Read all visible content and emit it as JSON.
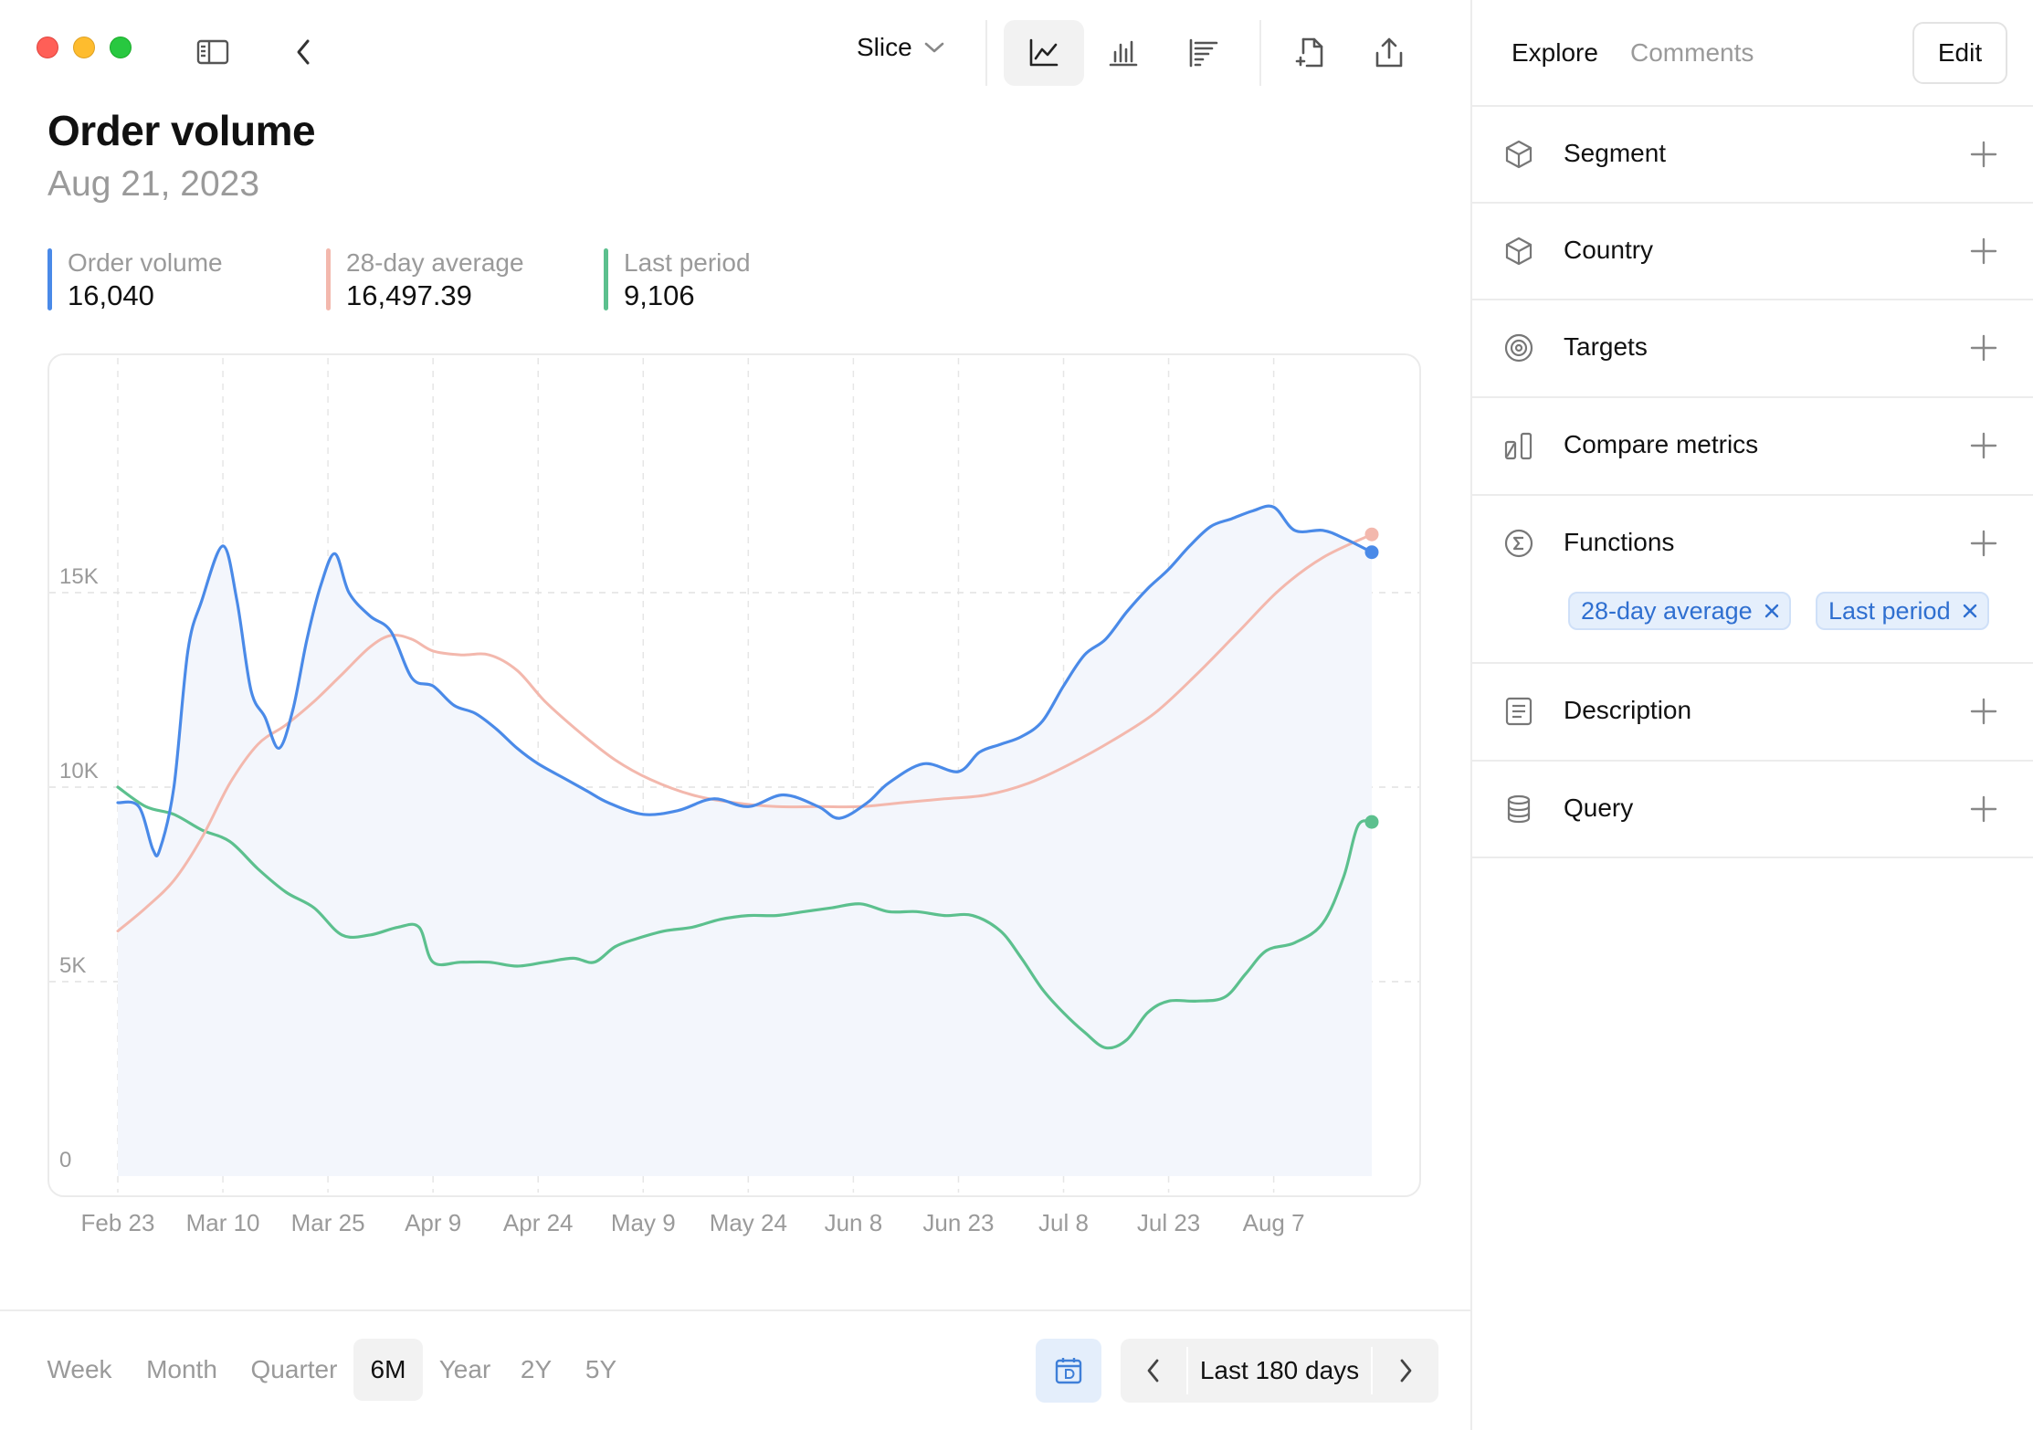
{
  "toolbar": {
    "slice_label": "Slice"
  },
  "header": {
    "title": "Order volume",
    "date": "Aug 21, 2023"
  },
  "legend": [
    {
      "label": "Order volume",
      "value": "16,040",
      "color": "#4a8ae8"
    },
    {
      "label": "28-day average",
      "value": "16,497.39",
      "color": "#f3b8ad"
    },
    {
      "label": "Last period",
      "value": "9,106",
      "color": "#5cc08e"
    }
  ],
  "chart_data": {
    "type": "line",
    "xlabel": "",
    "ylabel": "",
    "ylim": [
      0,
      20000
    ],
    "y_ticks": [
      {
        "value": 0,
        "label": "0"
      },
      {
        "value": 5000,
        "label": "5K"
      },
      {
        "value": 10000,
        "label": "10K"
      },
      {
        "value": 15000,
        "label": "15K"
      }
    ],
    "x_range": [
      "Feb 23",
      "Aug 21"
    ],
    "x_tick_labels": [
      "Feb 23",
      "Mar 10",
      "Mar 25",
      "Apr 9",
      "Apr 24",
      "May 9",
      "May 24",
      "Jun 8",
      "Jun 23",
      "Jul 8",
      "Jul 23",
      "Aug 7"
    ],
    "grid": true,
    "area_fill_under": "Order volume",
    "series": [
      {
        "name": "Order volume",
        "color": "#4a8ae8",
        "keypoints": [
          [
            "Feb 23",
            9600
          ],
          [
            "Feb 26",
            9500
          ],
          [
            "Feb 28",
            8400
          ],
          [
            "Mar 1",
            8400
          ],
          [
            "Mar 3",
            10000
          ],
          [
            "Mar 5",
            13500
          ],
          [
            "Mar 7",
            14800
          ],
          [
            "Mar 10",
            16200
          ],
          [
            "Mar 12",
            14800
          ],
          [
            "Mar 14",
            12500
          ],
          [
            "Mar 16",
            11800
          ],
          [
            "Mar 18",
            11000
          ],
          [
            "Mar 20",
            12000
          ],
          [
            "Mar 22",
            13800
          ],
          [
            "Mar 24",
            15200
          ],
          [
            "Mar 26",
            16000
          ],
          [
            "Mar 28",
            15000
          ],
          [
            "Mar 31",
            14400
          ],
          [
            "Apr 3",
            14000
          ],
          [
            "Apr 6",
            12800
          ],
          [
            "Apr 9",
            12600
          ],
          [
            "Apr 12",
            12100
          ],
          [
            "Apr 15",
            11900
          ],
          [
            "Apr 18",
            11500
          ],
          [
            "Apr 21",
            11000
          ],
          [
            "Apr 24",
            10600
          ],
          [
            "Apr 28",
            10200
          ],
          [
            "May 1",
            9900
          ],
          [
            "May 4",
            9600
          ],
          [
            "May 9",
            9300
          ],
          [
            "May 14",
            9400
          ],
          [
            "May 19",
            9700
          ],
          [
            "May 24",
            9500
          ],
          [
            "May 29",
            9800
          ],
          [
            "Jun 3",
            9500
          ],
          [
            "Jun 6",
            9200
          ],
          [
            "Jun 10",
            9600
          ],
          [
            "Jun 13",
            10100
          ],
          [
            "Jun 18",
            10600
          ],
          [
            "Jun 23",
            10400
          ],
          [
            "Jun 26",
            10900
          ],
          [
            "Jun 29",
            11100
          ],
          [
            "Jul 2",
            11300
          ],
          [
            "Jul 5",
            11700
          ],
          [
            "Jul 8",
            12600
          ],
          [
            "Jul 11",
            13400
          ],
          [
            "Jul 14",
            13800
          ],
          [
            "Jul 17",
            14500
          ],
          [
            "Jul 20",
            15100
          ],
          [
            "Jul 23",
            15600
          ],
          [
            "Jul 26",
            16200
          ],
          [
            "Jul 29",
            16700
          ],
          [
            "Aug 1",
            16900
          ],
          [
            "Aug 4",
            17100
          ],
          [
            "Aug 7",
            17200
          ],
          [
            "Aug 10",
            16600
          ],
          [
            "Aug 14",
            16600
          ],
          [
            "Aug 17",
            16400
          ],
          [
            "Aug 21",
            16040
          ]
        ]
      },
      {
        "name": "28-day average",
        "color": "#f3b8ad",
        "keypoints": [
          [
            "Feb 23",
            6300
          ],
          [
            "Feb 27",
            6900
          ],
          [
            "Mar 3",
            7600
          ],
          [
            "Mar 7",
            8700
          ],
          [
            "Mar 11",
            10100
          ],
          [
            "Mar 15",
            11100
          ],
          [
            "Mar 19",
            11600
          ],
          [
            "Mar 23",
            12200
          ],
          [
            "Mar 27",
            12900
          ],
          [
            "Mar 31",
            13600
          ],
          [
            "Apr 3",
            13900
          ],
          [
            "Apr 6",
            13800
          ],
          [
            "Apr 9",
            13500
          ],
          [
            "Apr 13",
            13400
          ],
          [
            "Apr 17",
            13400
          ],
          [
            "Apr 21",
            13000
          ],
          [
            "Apr 25",
            12200
          ],
          [
            "Apr 30",
            11400
          ],
          [
            "May 5",
            10700
          ],
          [
            "May 10",
            10200
          ],
          [
            "May 16",
            9800
          ],
          [
            "May 22",
            9600
          ],
          [
            "May 28",
            9500
          ],
          [
            "Jun 3",
            9500
          ],
          [
            "Jun 9",
            9500
          ],
          [
            "Jun 15",
            9600
          ],
          [
            "Jun 21",
            9700
          ],
          [
            "Jun 27",
            9800
          ],
          [
            "Jul 3",
            10100
          ],
          [
            "Jul 9",
            10600
          ],
          [
            "Jul 15",
            11200
          ],
          [
            "Jul 21",
            11900
          ],
          [
            "Jul 27",
            12900
          ],
          [
            "Aug 2",
            14000
          ],
          [
            "Aug 8",
            15100
          ],
          [
            "Aug 14",
            15900
          ],
          [
            "Aug 21",
            16497
          ]
        ]
      },
      {
        "name": "Last period",
        "color": "#5cc08e",
        "keypoints": [
          [
            "Feb 23",
            10000
          ],
          [
            "Feb 27",
            9500
          ],
          [
            "Mar 3",
            9300
          ],
          [
            "Mar 7",
            8900
          ],
          [
            "Mar 11",
            8600
          ],
          [
            "Mar 15",
            7900
          ],
          [
            "Mar 19",
            7300
          ],
          [
            "Mar 23",
            6900
          ],
          [
            "Mar 27",
            6200
          ],
          [
            "Mar 31",
            6200
          ],
          [
            "Apr 4",
            6400
          ],
          [
            "Apr 7",
            6400
          ],
          [
            "Apr 9",
            5500
          ],
          [
            "Apr 13",
            5500
          ],
          [
            "Apr 17",
            5500
          ],
          [
            "Apr 21",
            5400
          ],
          [
            "Apr 25",
            5500
          ],
          [
            "Apr 29",
            5600
          ],
          [
            "May 2",
            5500
          ],
          [
            "May 5",
            5900
          ],
          [
            "May 8",
            6100
          ],
          [
            "May 12",
            6300
          ],
          [
            "May 16",
            6400
          ],
          [
            "May 20",
            6600
          ],
          [
            "May 24",
            6700
          ],
          [
            "May 28",
            6700
          ],
          [
            "Jun 1",
            6800
          ],
          [
            "Jun 5",
            6900
          ],
          [
            "Jun 9",
            7000
          ],
          [
            "Jun 13",
            6800
          ],
          [
            "Jun 17",
            6800
          ],
          [
            "Jun 21",
            6700
          ],
          [
            "Jun 25",
            6700
          ],
          [
            "Jun 29",
            6300
          ],
          [
            "Jul 2",
            5600
          ],
          [
            "Jul 5",
            4800
          ],
          [
            "Jul 8",
            4200
          ],
          [
            "Jul 11",
            3700
          ],
          [
            "Jul 14",
            3300
          ],
          [
            "Jul 17",
            3500
          ],
          [
            "Jul 20",
            4200
          ],
          [
            "Jul 23",
            4500
          ],
          [
            "Jul 27",
            4500
          ],
          [
            "Jul 31",
            4600
          ],
          [
            "Aug 3",
            5200
          ],
          [
            "Aug 6",
            5800
          ],
          [
            "Aug 10",
            6000
          ],
          [
            "Aug 14",
            6500
          ],
          [
            "Aug 17",
            7700
          ],
          [
            "Aug 19",
            9000
          ],
          [
            "Aug 21",
            9106
          ]
        ]
      }
    ]
  },
  "range_selector": {
    "options": [
      "Week",
      "Month",
      "Quarter",
      "6M",
      "Year",
      "2Y",
      "5Y"
    ],
    "active": "6M"
  },
  "period": {
    "label": "Last 180 days"
  },
  "panel": {
    "tabs": [
      "Explore",
      "Comments"
    ],
    "active_tab": "Explore",
    "edit_label": "Edit",
    "rows": [
      {
        "label": "Segment",
        "icon": "cube-icon"
      },
      {
        "label": "Country",
        "icon": "cube-icon"
      },
      {
        "label": "Targets",
        "icon": "target-icon"
      },
      {
        "label": "Compare metrics",
        "icon": "compare-icon"
      },
      {
        "label": "Functions",
        "icon": "sigma-icon"
      },
      {
        "label": "Description",
        "icon": "document-icon"
      },
      {
        "label": "Query",
        "icon": "database-icon"
      }
    ],
    "function_chips": [
      "28-day average",
      "Last period"
    ]
  }
}
